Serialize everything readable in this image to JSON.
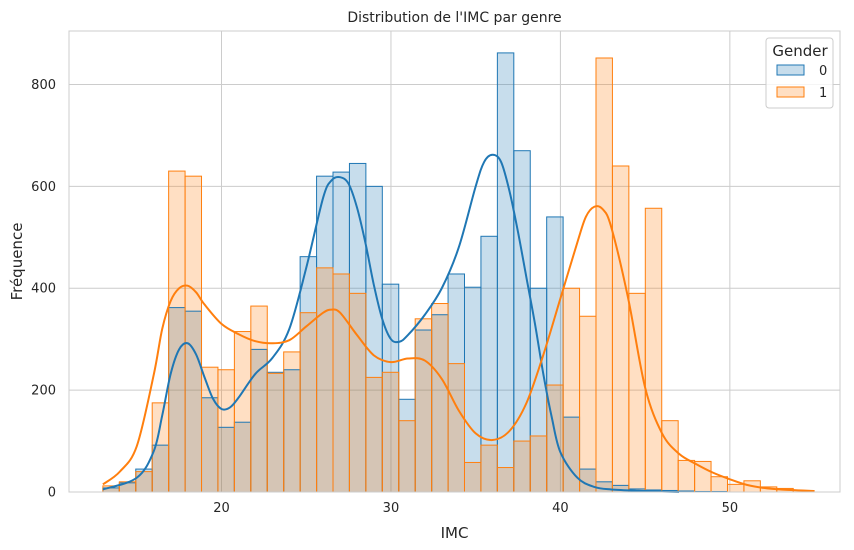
{
  "chart_data": {
    "type": "histogram",
    "title": "Distribution de l'IMC par genre",
    "xlabel": "IMC",
    "ylabel": "Fréquence",
    "xlim": [
      11,
      56.5
    ],
    "ylim": [
      0,
      905
    ],
    "x_ticks": [
      20,
      30,
      40,
      50
    ],
    "y_ticks": [
      0,
      200,
      400,
      600,
      800
    ],
    "grid": true,
    "legend": {
      "title": "Gender",
      "position": "top-right"
    },
    "bin_edges": [
      13.0,
      13.97,
      14.94,
      15.91,
      16.88,
      17.85,
      18.82,
      19.79,
      20.76,
      21.73,
      22.7,
      23.67,
      24.64,
      25.61,
      26.58,
      27.55,
      28.52,
      29.49,
      30.46,
      31.43,
      32.4,
      33.37,
      34.34,
      35.31,
      36.28,
      37.25,
      38.22,
      39.19,
      40.16,
      41.13,
      42.1,
      43.07,
      44.04,
      45.01,
      45.98,
      46.95,
      47.92,
      48.89,
      49.86,
      50.83,
      51.8,
      52.77,
      53.74,
      54.71
    ],
    "series": [
      {
        "name": "0",
        "color": "#1f77b4",
        "counts": [
          8,
          18,
          45,
          92,
          362,
          355,
          185,
          127,
          137,
          280,
          235,
          240,
          462,
          620,
          628,
          645,
          600,
          408,
          182,
          318,
          348,
          428,
          402,
          502,
          862,
          670,
          400,
          540,
          147,
          45,
          20,
          13,
          6,
          4,
          3,
          2,
          1,
          1,
          0,
          0,
          0,
          0,
          0
        ],
        "kde": [
          [
            13,
            5
          ],
          [
            15,
            28
          ],
          [
            16,
            80
          ],
          [
            16.5,
            150
          ],
          [
            17,
            232
          ],
          [
            17.5,
            280
          ],
          [
            18,
            292
          ],
          [
            18.5,
            270
          ],
          [
            19,
            225
          ],
          [
            19.5,
            183
          ],
          [
            20,
            163
          ],
          [
            20.5,
            166
          ],
          [
            21,
            185
          ],
          [
            22,
            232
          ],
          [
            23,
            263
          ],
          [
            24,
            320
          ],
          [
            25,
            440
          ],
          [
            26,
            578
          ],
          [
            26.5,
            612
          ],
          [
            27,
            618
          ],
          [
            27.5,
            605
          ],
          [
            28,
            558
          ],
          [
            28.5,
            488
          ],
          [
            29,
            405
          ],
          [
            29.5,
            338
          ],
          [
            30,
            300
          ],
          [
            30.5,
            295
          ],
          [
            31,
            308
          ],
          [
            32,
            348
          ],
          [
            33,
            400
          ],
          [
            34,
            480
          ],
          [
            35,
            600
          ],
          [
            35.5,
            648
          ],
          [
            36,
            662
          ],
          [
            36.5,
            648
          ],
          [
            37,
            590
          ],
          [
            37.5,
            510
          ],
          [
            38,
            420
          ],
          [
            38.5,
            330
          ],
          [
            39,
            230
          ],
          [
            39.5,
            145
          ],
          [
            40,
            78
          ],
          [
            41,
            28
          ],
          [
            42,
            10
          ],
          [
            43,
            5
          ],
          [
            45,
            2
          ],
          [
            47,
            0
          ]
        ]
      },
      {
        "name": "1",
        "color": "#ff7f0e",
        "counts": [
          12,
          20,
          40,
          175,
          630,
          620,
          245,
          240,
          315,
          365,
          233,
          275,
          352,
          440,
          428,
          390,
          225,
          235,
          140,
          340,
          370,
          252,
          58,
          92,
          48,
          100,
          110,
          210,
          400,
          345,
          852,
          640,
          390,
          557,
          140,
          62,
          60,
          30,
          15,
          22,
          10,
          7,
          3
        ],
        "kde": [
          [
            13,
            15
          ],
          [
            14,
            40
          ],
          [
            15,
            90
          ],
          [
            16,
            230
          ],
          [
            16.5,
            320
          ],
          [
            17,
            375
          ],
          [
            17.5,
            400
          ],
          [
            18,
            405
          ],
          [
            18.5,
            392
          ],
          [
            19,
            368
          ],
          [
            20,
            330
          ],
          [
            21,
            310
          ],
          [
            22,
            296
          ],
          [
            23,
            292
          ],
          [
            24,
            298
          ],
          [
            25,
            325
          ],
          [
            26,
            352
          ],
          [
            26.5,
            358
          ],
          [
            27,
            352
          ],
          [
            28,
            308
          ],
          [
            29,
            268
          ],
          [
            30,
            255
          ],
          [
            31,
            262
          ],
          [
            32,
            258
          ],
          [
            33,
            222
          ],
          [
            34,
            160
          ],
          [
            35,
            115
          ],
          [
            36,
            102
          ],
          [
            37,
            120
          ],
          [
            38,
            175
          ],
          [
            39,
            270
          ],
          [
            40,
            380
          ],
          [
            41,
            490
          ],
          [
            41.5,
            540
          ],
          [
            42,
            560
          ],
          [
            42.5,
            555
          ],
          [
            43,
            520
          ],
          [
            44,
            380
          ],
          [
            45,
            205
          ],
          [
            46,
            115
          ],
          [
            47,
            75
          ],
          [
            48,
            55
          ],
          [
            49,
            38
          ],
          [
            50,
            25
          ],
          [
            51,
            14
          ],
          [
            52,
            8
          ],
          [
            53,
            5
          ],
          [
            55,
            2
          ]
        ]
      }
    ]
  }
}
